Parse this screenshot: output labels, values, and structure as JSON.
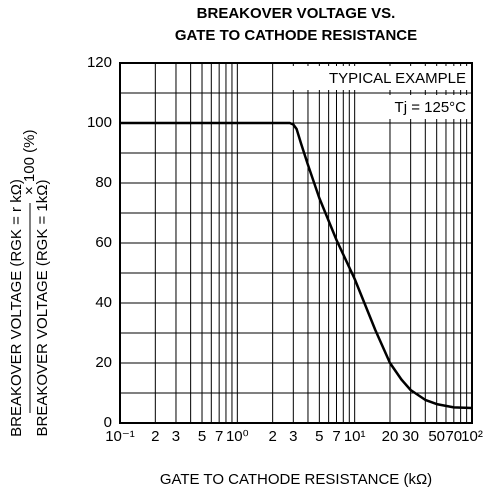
{
  "chart_data": {
    "type": "line",
    "title": [
      "BREAKOVER VOLTAGE VS.",
      "GATE TO CATHODE RESISTANCE"
    ],
    "x_label": "GATE TO CATHODE RESISTANCE  (kΩ)",
    "y_label": {
      "numerator": "BREAKOVER VOLTAGE (RGK = r kΩ)",
      "denominator": "BREAKOVER VOLTAGE (RGK = 1kΩ)",
      "factor": "× 100 (%)"
    },
    "annotations": [
      "TYPICAL EXAMPLE",
      "Tj = 125°C"
    ],
    "log_x": true,
    "grid": true,
    "xlim": [
      0.1,
      100
    ],
    "ylim": [
      0,
      120
    ],
    "xticks": [
      {
        "value": 0.1,
        "label": "10⁻¹"
      },
      {
        "value": 0.2,
        "label": "2"
      },
      {
        "value": 0.3,
        "label": "3"
      },
      {
        "value": 0.5,
        "label": "5"
      },
      {
        "value": 0.7,
        "label": "7"
      },
      {
        "value": 1,
        "label": "10⁰"
      },
      2,
      3,
      5,
      7,
      {
        "value": 10,
        "label": "10¹"
      },
      20,
      30,
      50,
      70,
      {
        "value": 100,
        "label": "10²"
      }
    ],
    "xminor": [
      0.4,
      0.6,
      0.8,
      0.9,
      4,
      6,
      8,
      9,
      40,
      60,
      80,
      90
    ],
    "yticks": [
      0,
      20,
      40,
      60,
      80,
      100,
      120
    ],
    "yminor": [
      10,
      30,
      50,
      70,
      90,
      110
    ],
    "series": [
      {
        "color": "#000000",
        "x": [
          0.1,
          1,
          2,
          2.5,
          2.8,
          3,
          3.2,
          3.5,
          4,
          5,
          7,
          10,
          15,
          20,
          25,
          30,
          40,
          50,
          70,
          100
        ],
        "values": [
          100,
          100,
          100,
          100,
          100,
          99.5,
          98,
          93,
          86,
          75,
          61,
          48,
          31,
          20,
          14.5,
          11,
          7.7,
          6.3,
          5.2,
          5
        ]
      }
    ]
  }
}
